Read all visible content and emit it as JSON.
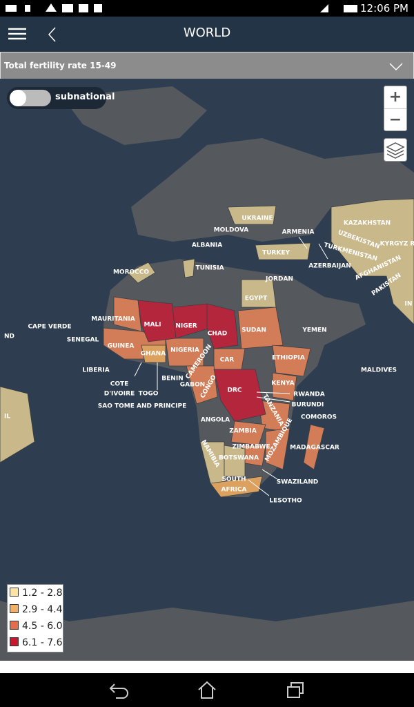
{
  "status_bar": {
    "time": "12:06 PM"
  },
  "header": {
    "title": "WORLD"
  },
  "indicator": {
    "label": "Total fertility rate 15-49"
  },
  "toggle": {
    "label": "subnational"
  },
  "zoom": {
    "in": "+",
    "out": "−"
  },
  "legend": {
    "items": [
      {
        "label": "1.2 - 2.8",
        "color": "#fbe3a4"
      },
      {
        "label": "2.9 - 4.4",
        "color": "#f2b066"
      },
      {
        "label": "4.5 - 6.0",
        "color": "#e46e4c"
      },
      {
        "label": "6.1 - 7.6",
        "color": "#c8172f"
      }
    ]
  },
  "map": {
    "labels": [
      "UKRAINE",
      "MOLDOVA",
      "ARMENIA",
      "KAZAKHSTAN",
      "UZBEKISTAN",
      "KYRGYZ R",
      "ALBANIA",
      "TURKEY",
      "TURKMENISTAN",
      "AZERBAIJAN",
      "MOROCCO",
      "TUNISIA",
      "JORDAN",
      "AFGHANISTAN",
      "PAKISTAN",
      "IN",
      "EGYPT",
      "MAURITANIA",
      "MALI",
      "NIGER",
      "CHAD",
      "SUDAN",
      "YEMEN",
      "CAPE VERDE",
      "ND",
      "SENEGAL",
      "GUINEA",
      "GHANA",
      "NIGERIA",
      "ETHIOPIA",
      "CAR",
      "CAMEROON",
      "LIBERIA",
      "BENIN",
      "COTE",
      "D'IVOIRE",
      "TOGO",
      "GABON",
      "CONGO",
      "DRC",
      "KENYA",
      "RWANDA",
      "BURUNDI",
      "TANZANIA",
      "MALDIVES",
      "SAO TOME AND PRINCIPE",
      "ANGOLA",
      "COMOROS",
      "ZAMBIA",
      "MOZAMBIQUE",
      "MADAGASCAR",
      "ZIMBABWE",
      "NAMIBIA",
      "BOTSWANA",
      "SOUTH",
      "AFRICA",
      "SWAZILAND",
      "LESOTHO",
      "IL"
    ]
  }
}
